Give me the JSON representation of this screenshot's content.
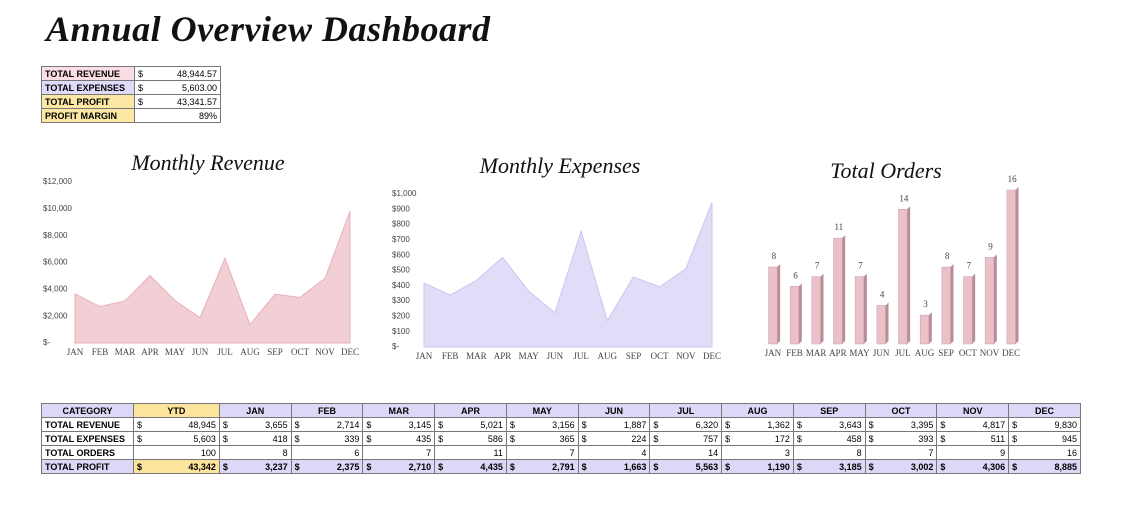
{
  "title": "Annual Overview Dashboard",
  "summary": {
    "rows": [
      {
        "label": "TOTAL REVENUE",
        "currency": "$",
        "value": "48,944.57"
      },
      {
        "label": "TOTAL EXPENSES",
        "currency": "$",
        "value": "5,603.00"
      },
      {
        "label": "TOTAL PROFIT",
        "currency": "$",
        "value": "43,341.57"
      },
      {
        "label": "PROFIT MARGIN",
        "value": "89%"
      }
    ]
  },
  "chart_data": [
    {
      "type": "area",
      "title": "Monthly Revenue",
      "categories": [
        "JAN",
        "FEB",
        "MAR",
        "APR",
        "MAY",
        "JUN",
        "JUL",
        "AUG",
        "SEP",
        "OCT",
        "NOV",
        "DEC"
      ],
      "values": [
        3655,
        2714,
        3145,
        5021,
        3156,
        1887,
        6320,
        1362,
        3643,
        3395,
        4817,
        9830
      ],
      "color": "#f2cfd4",
      "line_color": "#e8b0b9",
      "ylim": [
        0,
        12000
      ],
      "yticks": [
        {
          "value": 0,
          "label": "$-"
        },
        {
          "value": 2000,
          "label": "$2,000"
        },
        {
          "value": 4000,
          "label": "$4,000"
        },
        {
          "value": 6000,
          "label": "$6,000"
        },
        {
          "value": 8000,
          "label": "$8,000"
        },
        {
          "value": 10000,
          "label": "$10,000"
        },
        {
          "value": 12000,
          "label": "$12,000"
        }
      ]
    },
    {
      "type": "area",
      "title": "Monthly Expenses",
      "categories": [
        "JAN",
        "FEB",
        "MAR",
        "APR",
        "MAY",
        "JUN",
        "JUL",
        "AUG",
        "SEP",
        "OCT",
        "NOV",
        "DEC"
      ],
      "values": [
        418,
        339,
        435,
        586,
        365,
        224,
        757,
        172,
        458,
        393,
        511,
        945
      ],
      "color": "#e1ddf8",
      "line_color": "#cbc5f0",
      "ylim": [
        0,
        1000
      ],
      "yticks": [
        {
          "value": 0,
          "label": "$-"
        },
        {
          "value": 100,
          "label": "$100"
        },
        {
          "value": 200,
          "label": "$200"
        },
        {
          "value": 300,
          "label": "$300"
        },
        {
          "value": 400,
          "label": "$400"
        },
        {
          "value": 500,
          "label": "$500"
        },
        {
          "value": 600,
          "label": "$600"
        },
        {
          "value": 700,
          "label": "$700"
        },
        {
          "value": 800,
          "label": "$800"
        },
        {
          "value": 900,
          "label": "$900"
        },
        {
          "value": 1000,
          "label": "$1,000"
        }
      ]
    },
    {
      "type": "bar",
      "title": "Total Orders",
      "categories": [
        "JAN",
        "FEB",
        "MAR",
        "APR",
        "MAY",
        "JUN",
        "JUL",
        "AUG",
        "SEP",
        "OCT",
        "NOV",
        "DEC"
      ],
      "values": [
        8,
        6,
        7,
        11,
        7,
        4,
        14,
        3,
        8,
        7,
        9,
        16
      ],
      "color": "#eac0c9",
      "side_color": "#b98d97",
      "data_labels": true
    }
  ],
  "table": {
    "header": [
      "CATEGORY",
      "YTD",
      "JAN",
      "FEB",
      "MAR",
      "APR",
      "MAY",
      "JUN",
      "JUL",
      "AUG",
      "SEP",
      "OCT",
      "NOV",
      "DEC"
    ],
    "rows": [
      {
        "label": "TOTAL REVENUE",
        "currency": "$",
        "cells": [
          "48,945",
          "3,655",
          "2,714",
          "3,145",
          "5,021",
          "3,156",
          "1,887",
          "6,320",
          "1,362",
          "3,643",
          "3,395",
          "4,817",
          "9,830"
        ]
      },
      {
        "label": "TOTAL EXPENSES",
        "currency": "$",
        "cells": [
          "5,603",
          "418",
          "339",
          "435",
          "586",
          "365",
          "224",
          "757",
          "172",
          "458",
          "393",
          "511",
          "945"
        ]
      },
      {
        "label": "TOTAL ORDERS",
        "cells": [
          "100",
          "8",
          "6",
          "7",
          "11",
          "7",
          "4",
          "14",
          "3",
          "8",
          "7",
          "9",
          "16"
        ]
      },
      {
        "label": "TOTAL PROFIT",
        "currency": "$",
        "cells": [
          "43,342",
          "3,237",
          "2,375",
          "2,710",
          "4,435",
          "2,791",
          "1,663",
          "5,563",
          "1,190",
          "3,185",
          "3,002",
          "4,306",
          "8,885"
        ]
      }
    ]
  }
}
